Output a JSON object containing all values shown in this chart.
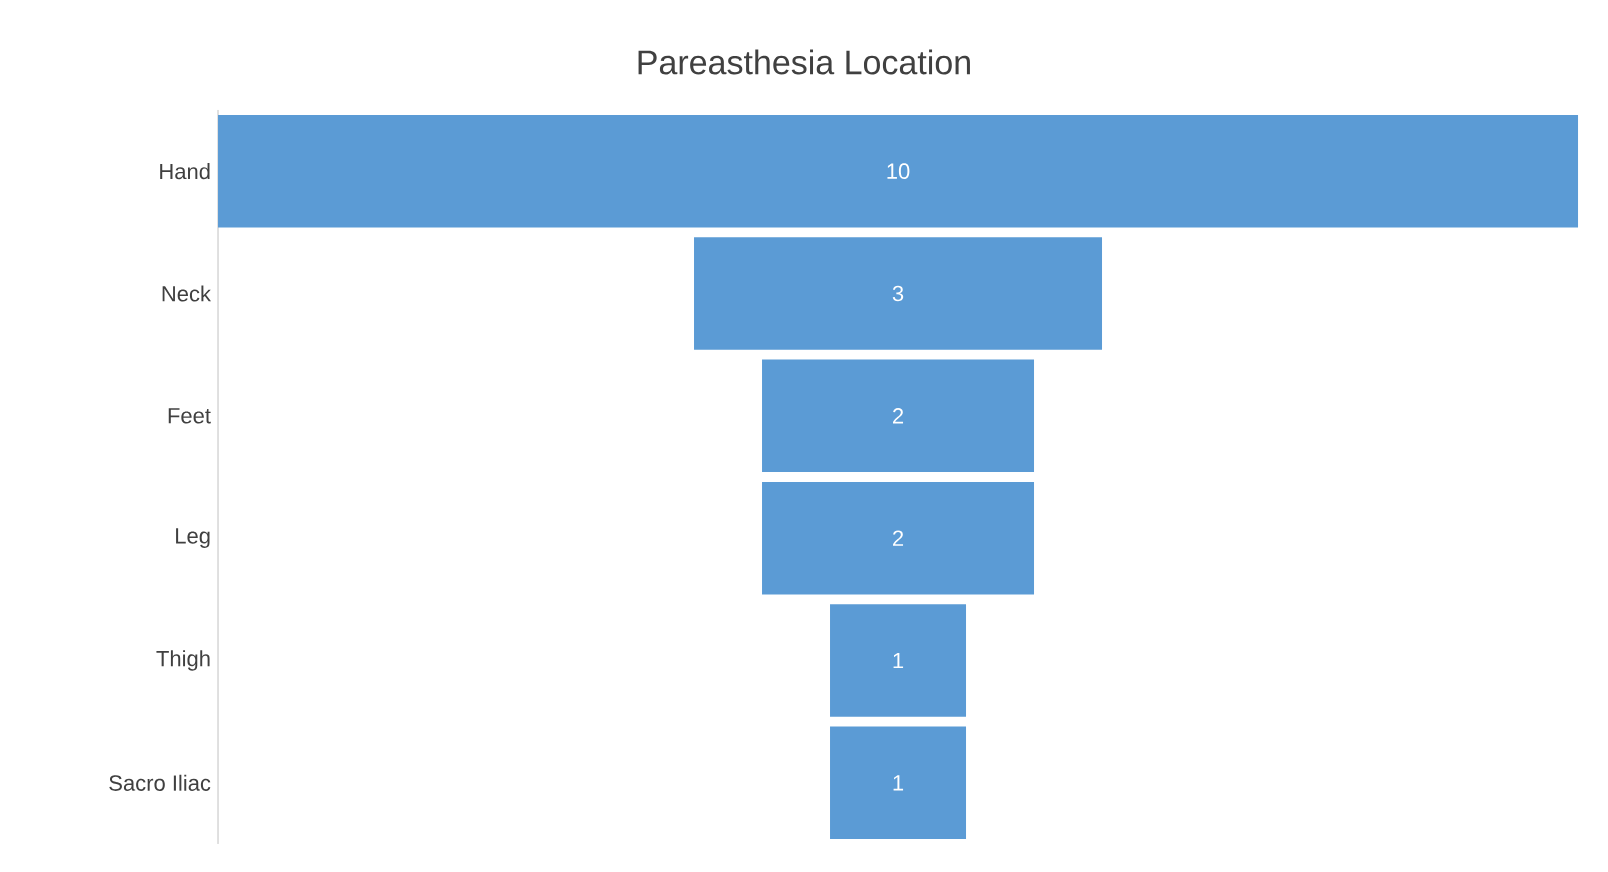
{
  "chart_data": {
    "type": "other",
    "title": "Pareasthesia  Location",
    "categories": [
      "Hand",
      "Neck",
      "Feet",
      "Leg",
      "Thigh",
      "Sacro Iliac"
    ],
    "values": [
      10,
      3,
      2,
      2,
      1,
      1
    ],
    "color": "#5b9bd5",
    "data_labels": true
  }
}
